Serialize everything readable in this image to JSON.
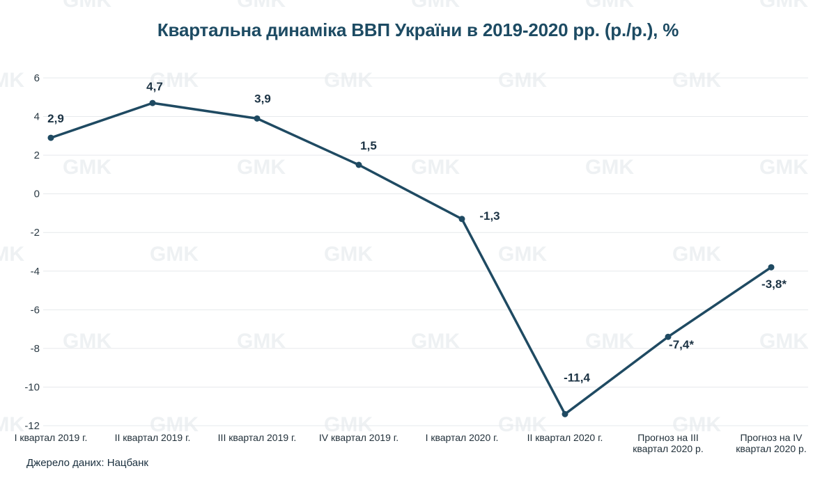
{
  "title": "Квартальна динаміка ВВП України в 2019-2020 рр. (р./р.), %",
  "source": "Джерело даних: Нацбанк",
  "watermark": "GMK",
  "colors": {
    "line": "#1f4a62",
    "title": "#1d4b63",
    "grid": "#e6e9ec"
  },
  "chart_data": {
    "type": "line",
    "title": "Квартальна динаміка ВВП України в 2019-2020 рр. (р./р.), %",
    "xlabel": "",
    "ylabel": "",
    "ylim": [
      -12,
      6
    ],
    "yticks": [
      "6",
      "4",
      "2",
      "0",
      "-2",
      "-4",
      "-6",
      "-8",
      "-10",
      "-12"
    ],
    "grid": true,
    "categories": [
      [
        "I квартал 2019 г."
      ],
      [
        "II квартал 2019 г."
      ],
      [
        "III квартал 2019 г."
      ],
      [
        "IV квартал 2019 г."
      ],
      [
        "I квартал 2020 г."
      ],
      [
        "II квартал 2020 г."
      ],
      [
        "Прогноз на III",
        "квартал 2020 р."
      ],
      [
        "Прогноз на IV",
        "квартал 2020 р."
      ]
    ],
    "values": [
      2.9,
      4.7,
      3.9,
      1.5,
      -1.3,
      -11.4,
      -7.4,
      -3.8
    ],
    "data_labels": [
      "2,9",
      "4,7",
      "3,9",
      "1,5",
      "-1,3",
      "-11,4",
      "-7,4*",
      "-3,8*"
    ]
  }
}
